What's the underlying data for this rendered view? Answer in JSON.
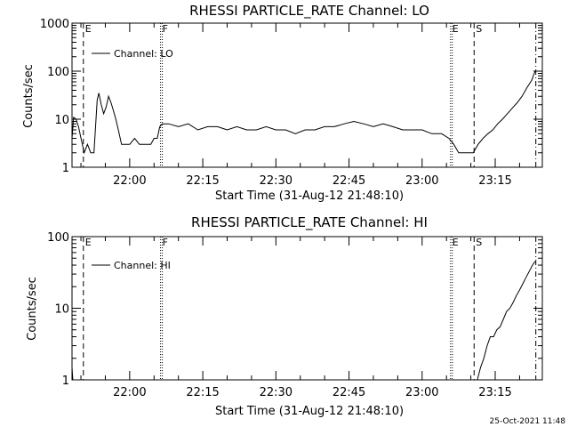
{
  "footer_timestamp": "25-Oct-2021 11:48",
  "chart_data": [
    {
      "type": "line",
      "title": "RHESSI PARTICLE_RATE Channel: LO",
      "xlabel": "Start Time (31-Aug-12 21:48:10)",
      "ylabel": "Counts/sec",
      "yscale": "log",
      "ylim": [
        1,
        1000
      ],
      "xlim": [
        "21:48:10",
        "23:24:40"
      ],
      "x_ticks": [
        "22:00",
        "22:15",
        "22:30",
        "22:45",
        "23:00",
        "23:15"
      ],
      "y_ticks": [
        "1",
        "10",
        "100",
        "1000"
      ],
      "legend": "Channel: LO",
      "markers": [
        {
          "label": "E",
          "time": "21:50:30",
          "style": "dashed"
        },
        {
          "label": "F",
          "time": "22:06:20",
          "style": "dotted"
        },
        {
          "label": "E",
          "time": "23:05:50",
          "style": "dotted"
        },
        {
          "label": "S",
          "time": "23:10:40",
          "style": "dashed"
        },
        {
          "label": "",
          "time": "23:23:20",
          "style": "dashdot"
        }
      ],
      "series": [
        {
          "name": "Channel: LO",
          "x": [
            "21:48:10",
            "21:48:30",
            "21:49:00",
            "21:49:30",
            "21:50:00",
            "21:50:40",
            "21:51:20",
            "21:52:00",
            "21:52:40",
            "21:53:20",
            "21:53:40",
            "21:54:10",
            "21:54:40",
            "21:55:10",
            "21:55:40",
            "21:56:10",
            "21:56:40",
            "21:57:10",
            "21:57:40",
            "21:58:20",
            "21:59:00",
            "22:00:00",
            "22:01:00",
            "22:02:00",
            "22:03:00",
            "22:03:40",
            "22:04:20",
            "22:05:00",
            "22:05:40",
            "22:06:10",
            "22:06:40",
            "22:08:00",
            "22:10:00",
            "22:12:00",
            "22:14:00",
            "22:16:00",
            "22:18:00",
            "22:20:00",
            "22:22:00",
            "22:24:00",
            "22:26:00",
            "22:28:00",
            "22:30:00",
            "22:32:00",
            "22:34:00",
            "22:36:00",
            "22:38:00",
            "22:40:00",
            "22:42:00",
            "22:44:00",
            "22:46:00",
            "22:48:00",
            "22:50:00",
            "22:52:00",
            "22:54:00",
            "22:56:00",
            "22:58:00",
            "23:00:00",
            "23:02:00",
            "23:04:00",
            "23:05:30",
            "23:06:30",
            "23:07:30",
            "23:08:30",
            "23:09:30",
            "23:10:30",
            "23:11:30",
            "23:12:30",
            "23:13:30",
            "23:14:30",
            "23:15:30",
            "23:16:30",
            "23:17:30",
            "23:18:30",
            "23:19:30",
            "23:20:30",
            "23:21:30",
            "23:22:30",
            "23:23:10"
          ],
          "values": [
            4,
            11,
            10,
            7,
            4,
            2,
            3,
            2,
            2,
            25,
            35,
            20,
            13,
            18,
            30,
            22,
            15,
            10,
            6,
            3,
            3,
            3,
            4,
            3,
            3,
            3,
            3,
            4,
            4,
            7,
            8,
            8,
            7,
            8,
            6,
            7,
            7,
            6,
            7,
            6,
            6,
            7,
            6,
            6,
            5,
            6,
            6,
            7,
            7,
            8,
            9,
            8,
            7,
            8,
            7,
            6,
            6,
            6,
            5,
            5,
            4,
            3,
            2,
            2,
            2,
            2,
            3,
            4,
            5,
            6,
            8,
            10,
            13,
            17,
            22,
            30,
            45,
            65,
            100
          ]
        }
      ]
    },
    {
      "type": "line",
      "title": "RHESSI PARTICLE_RATE Channel: HI",
      "xlabel": "Start Time (31-Aug-12 21:48:10)",
      "ylabel": "Counts/sec",
      "yscale": "log",
      "ylim": [
        1,
        100
      ],
      "xlim": [
        "21:48:10",
        "23:24:40"
      ],
      "x_ticks": [
        "22:00",
        "22:15",
        "22:30",
        "22:45",
        "23:00",
        "23:15"
      ],
      "y_ticks": [
        "1",
        "10",
        "100"
      ],
      "legend": "Channel: HI",
      "markers": [
        {
          "label": "E",
          "time": "21:50:30",
          "style": "dashed"
        },
        {
          "label": "F",
          "time": "22:06:20",
          "style": "dotted"
        },
        {
          "label": "E",
          "time": "23:05:50",
          "style": "dotted"
        },
        {
          "label": "S",
          "time": "23:10:40",
          "style": "dashed"
        },
        {
          "label": "",
          "time": "23:23:20",
          "style": "dashdot"
        }
      ],
      "series": [
        {
          "name": "Channel: HI",
          "x": [
            "21:48:10",
            "21:48:20",
            "23:11:20",
            "23:12:00",
            "23:12:40",
            "23:13:20",
            "23:14:00",
            "23:14:40",
            "23:15:20",
            "23:16:00",
            "23:16:40",
            "23:17:20",
            "23:18:00",
            "23:18:40",
            "23:19:20",
            "23:20:00",
            "23:20:40",
            "23:21:20",
            "23:22:00",
            "23:22:40",
            "23:23:10"
          ],
          "values": [
            1.5,
            1,
            1,
            1.5,
            2,
            3,
            4,
            4,
            5,
            5.5,
            7,
            9,
            10,
            12,
            15,
            18,
            22,
            27,
            33,
            40,
            45
          ]
        }
      ]
    }
  ]
}
